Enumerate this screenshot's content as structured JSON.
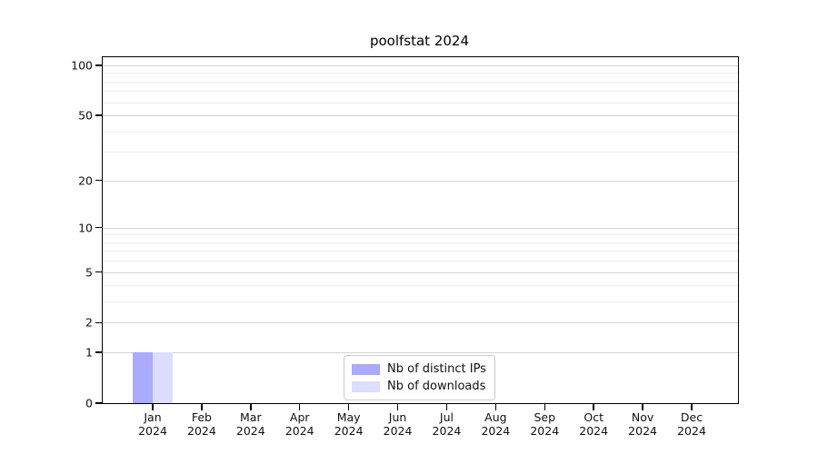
{
  "title": "poolfstat 2024",
  "chart_data": {
    "type": "bar",
    "title": "poolfstat 2024",
    "categories": [
      "Jan\n2024",
      "Feb\n2024",
      "Mar\n2024",
      "Apr\n2024",
      "May\n2024",
      "Jun\n2024",
      "Jul\n2024",
      "Aug\n2024",
      "Sep\n2024",
      "Oct\n2024",
      "Nov\n2024",
      "Dec\n2024"
    ],
    "series": [
      {
        "name": "Nb of distinct IPs",
        "color": "#aaaaff",
        "values": [
          1,
          0,
          0,
          0,
          0,
          0,
          0,
          0,
          0,
          0,
          0,
          0
        ]
      },
      {
        "name": "Nb of downloads",
        "color": "#ddddff",
        "values": [
          1,
          0,
          0,
          0,
          0,
          0,
          0,
          0,
          0,
          0,
          0,
          0
        ]
      }
    ],
    "xlabel": "",
    "ylabel": "",
    "y_axis": {
      "scale": "log1p",
      "major_ticks": [
        0,
        1,
        2,
        5,
        10,
        20,
        50,
        100
      ],
      "minor_ticks": [
        3,
        4,
        6,
        7,
        8,
        9,
        30,
        40,
        60,
        70,
        80,
        90
      ],
      "ylim": [
        0,
        112
      ]
    },
    "grid": "on",
    "legend_position": "lower-center",
    "colors": {
      "major_grid": "#d4d4d4",
      "minor_grid": "#ededed",
      "axis": "#000000",
      "text": "#111111"
    }
  },
  "legend": {
    "items": [
      {
        "label": "Nb of distinct IPs",
        "color": "#aaaaff"
      },
      {
        "label": "Nb of downloads",
        "color": "#ddddff"
      }
    ]
  }
}
